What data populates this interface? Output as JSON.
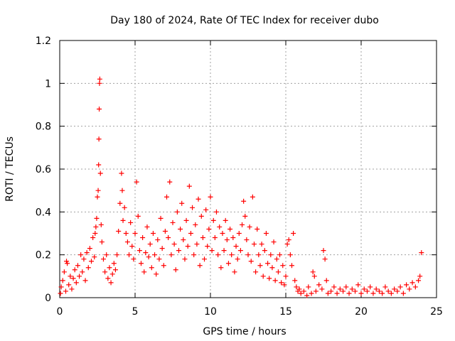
{
  "chart_data": {
    "type": "scatter",
    "title": "Day 180 of 2024, Rate Of TEC Index for receiver dubo",
    "xlabel": "GPS time / hours",
    "ylabel": "ROTI / TECUs",
    "xlim": [
      0,
      25
    ],
    "ylim": [
      0,
      1.2
    ],
    "xticks": [
      0,
      5,
      10,
      15,
      20,
      25
    ],
    "xtick_labels": [
      "0",
      "5",
      "10",
      "15",
      "20",
      "25"
    ],
    "yticks": [
      0,
      0.2,
      0.4,
      0.6,
      0.8,
      1.0,
      1.2
    ],
    "ytick_labels": [
      "0",
      "0.2",
      "0.4",
      "0.6",
      "0.8",
      "1",
      "1.2"
    ],
    "grid": true,
    "marker": "+",
    "color": "#ff0000",
    "series": [
      {
        "name": "ROTI",
        "points": [
          [
            0.05,
            0.02
          ],
          [
            0.1,
            0.05
          ],
          [
            0.2,
            0.08
          ],
          [
            0.3,
            0.12
          ],
          [
            0.4,
            0.03
          ],
          [
            0.45,
            0.17
          ],
          [
            0.5,
            0.16
          ],
          [
            0.6,
            0.06
          ],
          [
            0.7,
            0.1
          ],
          [
            0.8,
            0.04
          ],
          [
            0.9,
            0.09
          ],
          [
            1.0,
            0.13
          ],
          [
            1.1,
            0.07
          ],
          [
            1.2,
            0.15
          ],
          [
            1.3,
            0.1
          ],
          [
            1.4,
            0.2
          ],
          [
            1.5,
            0.12
          ],
          [
            1.6,
            0.18
          ],
          [
            1.7,
            0.08
          ],
          [
            1.8,
            0.21
          ],
          [
            1.9,
            0.14
          ],
          [
            2.0,
            0.23
          ],
          [
            2.1,
            0.17
          ],
          [
            2.2,
            0.28
          ],
          [
            2.3,
            0.19
          ],
          [
            2.35,
            0.3
          ],
          [
            2.4,
            0.33
          ],
          [
            2.45,
            0.37
          ],
          [
            2.5,
            0.47
          ],
          [
            2.55,
            0.5
          ],
          [
            2.58,
            0.62
          ],
          [
            2.6,
            0.74
          ],
          [
            2.62,
            0.88
          ],
          [
            2.64,
            1.0
          ],
          [
            2.66,
            1.02
          ],
          [
            2.7,
            0.58
          ],
          [
            2.75,
            0.34
          ],
          [
            2.8,
            0.26
          ],
          [
            2.9,
            0.18
          ],
          [
            3.0,
            0.12
          ],
          [
            3.1,
            0.2
          ],
          [
            3.2,
            0.09
          ],
          [
            3.3,
            0.14
          ],
          [
            3.4,
            0.07
          ],
          [
            3.5,
            0.11
          ],
          [
            3.6,
            0.16
          ],
          [
            3.7,
            0.13
          ],
          [
            3.8,
            0.2
          ],
          [
            3.9,
            0.31
          ],
          [
            4.0,
            0.44
          ],
          [
            4.1,
            0.58
          ],
          [
            4.15,
            0.5
          ],
          [
            4.2,
            0.36
          ],
          [
            4.3,
            0.42
          ],
          [
            4.4,
            0.3
          ],
          [
            4.5,
            0.26
          ],
          [
            4.6,
            0.2
          ],
          [
            4.7,
            0.35
          ],
          [
            4.8,
            0.24
          ],
          [
            4.9,
            0.18
          ],
          [
            5.0,
            0.3
          ],
          [
            5.1,
            0.54
          ],
          [
            5.2,
            0.38
          ],
          [
            5.3,
            0.22
          ],
          [
            5.4,
            0.16
          ],
          [
            5.5,
            0.28
          ],
          [
            5.6,
            0.12
          ],
          [
            5.7,
            0.21
          ],
          [
            5.8,
            0.33
          ],
          [
            5.9,
            0.19
          ],
          [
            6.0,
            0.25
          ],
          [
            6.1,
            0.14
          ],
          [
            6.2,
            0.3
          ],
          [
            6.3,
            0.2
          ],
          [
            6.4,
            0.11
          ],
          [
            6.5,
            0.27
          ],
          [
            6.6,
            0.18
          ],
          [
            6.7,
            0.37
          ],
          [
            6.8,
            0.23
          ],
          [
            6.9,
            0.15
          ],
          [
            7.0,
            0.31
          ],
          [
            7.1,
            0.47
          ],
          [
            7.2,
            0.28
          ],
          [
            7.3,
            0.54
          ],
          [
            7.4,
            0.2
          ],
          [
            7.5,
            0.35
          ],
          [
            7.6,
            0.25
          ],
          [
            7.7,
            0.13
          ],
          [
            7.8,
            0.4
          ],
          [
            7.9,
            0.22
          ],
          [
            8.0,
            0.32
          ],
          [
            8.1,
            0.44
          ],
          [
            8.2,
            0.27
          ],
          [
            8.3,
            0.18
          ],
          [
            8.4,
            0.36
          ],
          [
            8.5,
            0.24
          ],
          [
            8.6,
            0.52
          ],
          [
            8.7,
            0.3
          ],
          [
            8.8,
            0.42
          ],
          [
            8.9,
            0.2
          ],
          [
            9.0,
            0.34
          ],
          [
            9.1,
            0.25
          ],
          [
            9.2,
            0.46
          ],
          [
            9.3,
            0.15
          ],
          [
            9.4,
            0.38
          ],
          [
            9.5,
            0.28
          ],
          [
            9.6,
            0.18
          ],
          [
            9.7,
            0.41
          ],
          [
            9.8,
            0.24
          ],
          [
            9.9,
            0.32
          ],
          [
            10.0,
            0.47
          ],
          [
            10.1,
            0.22
          ],
          [
            10.2,
            0.36
          ],
          [
            10.3,
            0.28
          ],
          [
            10.4,
            0.4
          ],
          [
            10.5,
            0.2
          ],
          [
            10.6,
            0.33
          ],
          [
            10.7,
            0.14
          ],
          [
            10.8,
            0.3
          ],
          [
            10.9,
            0.22
          ],
          [
            11.0,
            0.36
          ],
          [
            11.1,
            0.27
          ],
          [
            11.2,
            0.16
          ],
          [
            11.3,
            0.32
          ],
          [
            11.4,
            0.2
          ],
          [
            11.5,
            0.28
          ],
          [
            11.6,
            0.12
          ],
          [
            11.7,
            0.24
          ],
          [
            11.8,
            0.18
          ],
          [
            11.9,
            0.3
          ],
          [
            12.0,
            0.22
          ],
          [
            12.1,
            0.34
          ],
          [
            12.2,
            0.45
          ],
          [
            12.3,
            0.38
          ],
          [
            12.4,
            0.27
          ],
          [
            12.5,
            0.2
          ],
          [
            12.6,
            0.33
          ],
          [
            12.7,
            0.17
          ],
          [
            12.8,
            0.47
          ],
          [
            12.9,
            0.25
          ],
          [
            13.0,
            0.12
          ],
          [
            13.1,
            0.32
          ],
          [
            13.2,
            0.2
          ],
          [
            13.3,
            0.15
          ],
          [
            13.4,
            0.25
          ],
          [
            13.5,
            0.1
          ],
          [
            13.6,
            0.22
          ],
          [
            13.7,
            0.3
          ],
          [
            13.8,
            0.16
          ],
          [
            13.9,
            0.09
          ],
          [
            14.0,
            0.2
          ],
          [
            14.1,
            0.14
          ],
          [
            14.2,
            0.26
          ],
          [
            14.3,
            0.08
          ],
          [
            14.4,
            0.18
          ],
          [
            14.5,
            0.12
          ],
          [
            14.6,
            0.2
          ],
          [
            14.7,
            0.07
          ],
          [
            14.8,
            0.15
          ],
          [
            14.9,
            0.06
          ],
          [
            15.0,
            0.1
          ],
          [
            15.1,
            0.25
          ],
          [
            15.2,
            0.27
          ],
          [
            15.3,
            0.2
          ],
          [
            15.4,
            0.15
          ],
          [
            15.5,
            0.3
          ],
          [
            15.6,
            0.08
          ],
          [
            15.7,
            0.05
          ],
          [
            15.8,
            0.03
          ],
          [
            15.9,
            0.04
          ],
          [
            16.0,
            0.02
          ],
          [
            16.2,
            0.03
          ],
          [
            16.4,
            0.01
          ],
          [
            16.5,
            0.05
          ],
          [
            16.7,
            0.02
          ],
          [
            16.8,
            0.12
          ],
          [
            16.9,
            0.1
          ],
          [
            17.0,
            0.03
          ],
          [
            17.2,
            0.06
          ],
          [
            17.4,
            0.04
          ],
          [
            17.5,
            0.22
          ],
          [
            17.6,
            0.18
          ],
          [
            17.7,
            0.08
          ],
          [
            17.8,
            0.02
          ],
          [
            18.0,
            0.03
          ],
          [
            18.2,
            0.05
          ],
          [
            18.4,
            0.02
          ],
          [
            18.6,
            0.04
          ],
          [
            18.8,
            0.03
          ],
          [
            19.0,
            0.05
          ],
          [
            19.2,
            0.02
          ],
          [
            19.4,
            0.04
          ],
          [
            19.6,
            0.03
          ],
          [
            19.8,
            0.06
          ],
          [
            20.0,
            0.02
          ],
          [
            20.2,
            0.04
          ],
          [
            20.4,
            0.03
          ],
          [
            20.6,
            0.05
          ],
          [
            20.8,
            0.02
          ],
          [
            21.0,
            0.04
          ],
          [
            21.2,
            0.03
          ],
          [
            21.4,
            0.02
          ],
          [
            21.6,
            0.05
          ],
          [
            21.8,
            0.03
          ],
          [
            22.0,
            0.02
          ],
          [
            22.2,
            0.04
          ],
          [
            22.4,
            0.03
          ],
          [
            22.6,
            0.05
          ],
          [
            22.8,
            0.02
          ],
          [
            23.0,
            0.06
          ],
          [
            23.2,
            0.04
          ],
          [
            23.4,
            0.07
          ],
          [
            23.6,
            0.05
          ],
          [
            23.8,
            0.08
          ],
          [
            23.9,
            0.1
          ],
          [
            24.0,
            0.21
          ]
        ]
      }
    ]
  }
}
